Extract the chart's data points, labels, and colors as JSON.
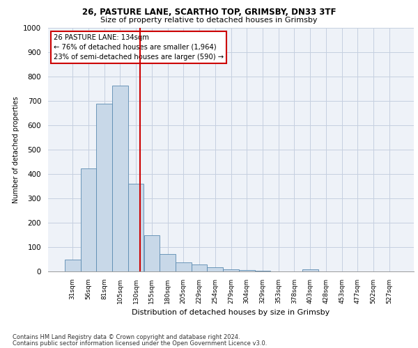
{
  "title_line1": "26, PASTURE LANE, SCARTHO TOP, GRIMSBY, DN33 3TF",
  "title_line2": "Size of property relative to detached houses in Grimsby",
  "xlabel": "Distribution of detached houses by size in Grimsby",
  "ylabel": "Number of detached properties",
  "categories": [
    "31sqm",
    "56sqm",
    "81sqm",
    "105sqm",
    "130sqm",
    "155sqm",
    "180sqm",
    "205sqm",
    "229sqm",
    "254sqm",
    "279sqm",
    "304sqm",
    "329sqm",
    "353sqm",
    "378sqm",
    "403sqm",
    "428sqm",
    "453sqm",
    "477sqm",
    "502sqm",
    "527sqm"
  ],
  "values": [
    48,
    422,
    688,
    762,
    360,
    150,
    72,
    38,
    28,
    17,
    10,
    5,
    2,
    0,
    0,
    8,
    0,
    0,
    0,
    0,
    0
  ],
  "bar_color": "#c8d8e8",
  "bar_edge_color": "#5a8ab0",
  "highlight_line_color": "#cc0000",
  "highlight_bar_index": 4,
  "annotation_text": "26 PASTURE LANE: 134sqm\n← 76% of detached houses are smaller (1,964)\n23% of semi-detached houses are larger (590) →",
  "annotation_box_color": "#ffffff",
  "annotation_box_edge": "#cc0000",
  "ylim": [
    0,
    1000
  ],
  "yticks": [
    0,
    100,
    200,
    300,
    400,
    500,
    600,
    700,
    800,
    900,
    1000
  ],
  "footer_line1": "Contains HM Land Registry data © Crown copyright and database right 2024.",
  "footer_line2": "Contains public sector information licensed under the Open Government Licence v3.0.",
  "bg_color": "#eef2f8",
  "grid_color": "#c5cfe0"
}
